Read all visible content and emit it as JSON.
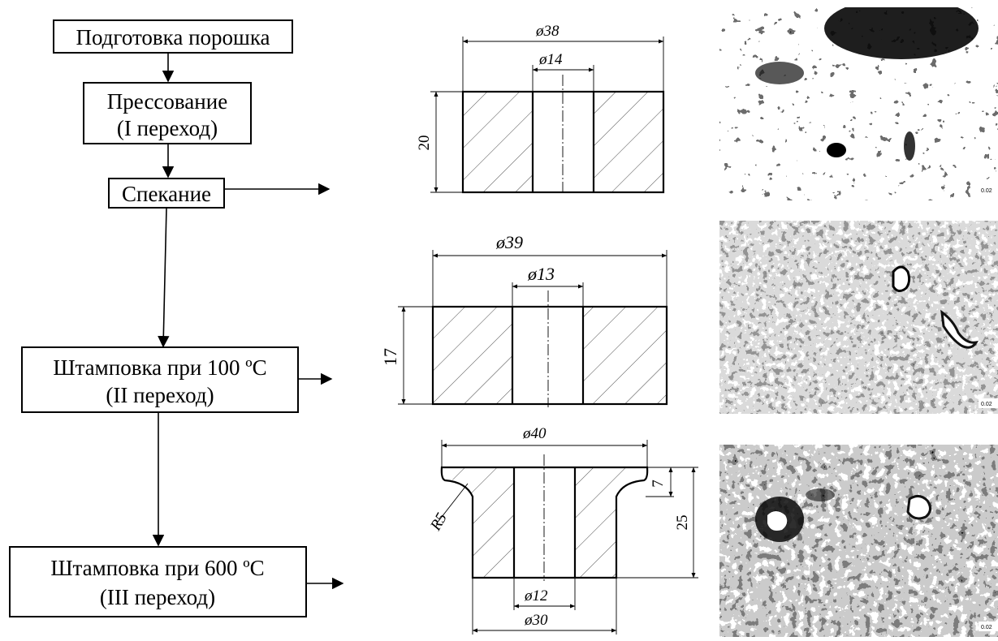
{
  "flowchart": {
    "step1": "Подготовка порошка",
    "step2_line1": "Прессование",
    "step2_line2": "(I переход)",
    "step3": "Спекание",
    "step4_line1": "Штамповка при 100 ºС",
    "step4_line2": "(II переход)",
    "step5_line1": "Штамповка при 600 ºС",
    "step5_line2": "(III переход)"
  },
  "drawing1": {
    "outer_dia": "ø38",
    "inner_dia": "ø14",
    "height": "20"
  },
  "drawing2": {
    "outer_dia": "ø39",
    "inner_dia": "ø13",
    "height": "17"
  },
  "drawing3": {
    "top_dia": "ø40",
    "radius": "R5",
    "flange_height": "7",
    "total_height": "25",
    "inner_dia": "ø12",
    "bottom_dia": "ø30"
  },
  "micrographs": {
    "micro1_scale": "0.02",
    "micro2_scale": "0.02",
    "micro3_scale": "0.02"
  }
}
